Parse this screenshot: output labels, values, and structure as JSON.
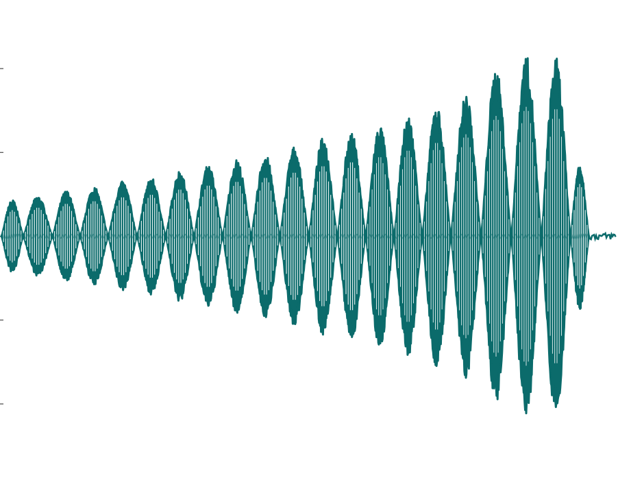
{
  "chart_data": {
    "type": "line",
    "title": "",
    "xlabel": "",
    "ylabel": "",
    "grid": false,
    "legend": "none",
    "ylim": [
      -1.0,
      1.0
    ],
    "y_ticks": [
      -1.0,
      -0.5,
      0.0,
      0.5,
      1.0
    ],
    "y_tick_labels": [
      "",
      "",
      "",
      "",
      ""
    ],
    "xlim": [
      0.0,
      1.0
    ],
    "color": "#0b6b6b",
    "inner_color": "#ffffff",
    "signal": {
      "description_free_params": true,
      "pulse_count": 21,
      "carrier_cycles_per_pulse": 9,
      "tail_start": 0.955,
      "tail_amplitude": 0.02
    },
    "pulse_peaks": [
      {
        "x": 0.011,
        "amplitude": 0.2
      },
      {
        "x": 0.06,
        "amplitude": 0.22
      },
      {
        "x": 0.106,
        "amplitude": 0.25
      },
      {
        "x": 0.15,
        "amplitude": 0.27
      },
      {
        "x": 0.197,
        "amplitude": 0.3
      },
      {
        "x": 0.244,
        "amplitude": 0.32
      },
      {
        "x": 0.29,
        "amplitude": 0.36
      },
      {
        "x": 0.336,
        "amplitude": 0.39
      },
      {
        "x": 0.383,
        "amplitude": 0.42
      },
      {
        "x": 0.429,
        "amplitude": 0.45
      },
      {
        "x": 0.476,
        "amplitude": 0.49
      },
      {
        "x": 0.523,
        "amplitude": 0.54
      },
      {
        "x": 0.569,
        "amplitude": 0.57
      },
      {
        "x": 0.615,
        "amplitude": 0.61
      },
      {
        "x": 0.661,
        "amplitude": 0.66
      },
      {
        "x": 0.707,
        "amplitude": 0.72
      },
      {
        "x": 0.754,
        "amplitude": 0.78
      },
      {
        "x": 0.805,
        "amplitude": 0.92
      },
      {
        "x": 0.852,
        "amplitude": 0.99
      },
      {
        "x": 0.903,
        "amplitude": 0.98
      },
      {
        "x": 0.947,
        "amplitude": 0.4
      }
    ]
  }
}
